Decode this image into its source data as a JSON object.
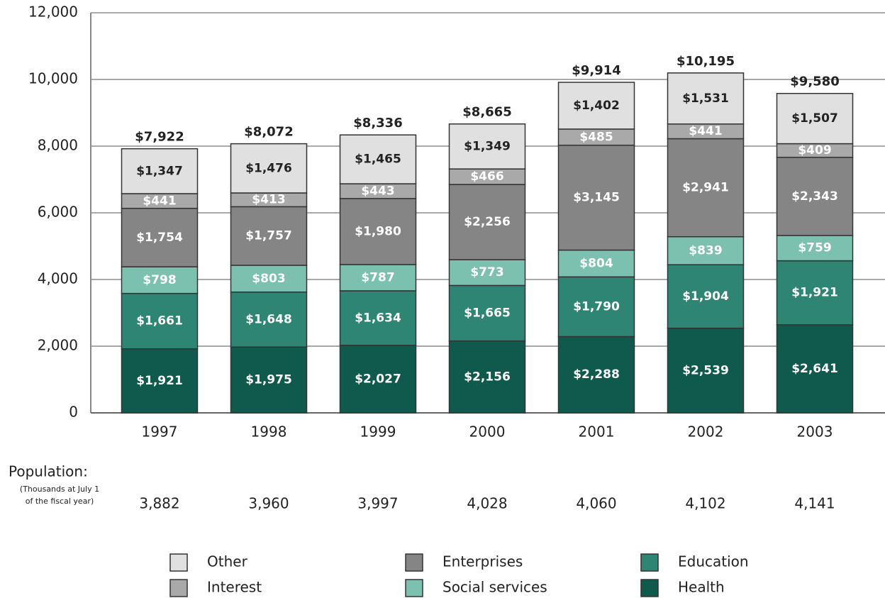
{
  "chart_data": {
    "type": "stacked_bar",
    "categories": [
      "1997",
      "1998",
      "1999",
      "2000",
      "2001",
      "2002",
      "2003"
    ],
    "series": [
      {
        "name": "Health",
        "color": "#0f5a4c",
        "label_color": "#ffffff",
        "values": [
          1921,
          1975,
          2027,
          2156,
          2288,
          2539,
          2641
        ],
        "value_labels": [
          "$1,921",
          "$1,975",
          "$2,027",
          "$2,156",
          "$2,288",
          "$2,539",
          "$2,641"
        ]
      },
      {
        "name": "Education",
        "color": "#2e8574",
        "label_color": "#ffffff",
        "values": [
          1661,
          1648,
          1634,
          1665,
          1790,
          1904,
          1921
        ],
        "value_labels": [
          "$1,661",
          "$1,648",
          "$1,634",
          "$1,665",
          "$1,790",
          "$1,904",
          "$1,921"
        ]
      },
      {
        "name": "Social services",
        "color": "#7cc0b0",
        "label_color": "#ffffff",
        "values": [
          798,
          803,
          787,
          773,
          804,
          839,
          759
        ],
        "value_labels": [
          "$798",
          "$803",
          "$787",
          "$773",
          "$804",
          "$839",
          "$759"
        ]
      },
      {
        "name": "Enterprises",
        "color": "#858585",
        "label_color": "#ffffff",
        "values": [
          1754,
          1757,
          1980,
          2256,
          3145,
          2941,
          2343
        ],
        "value_labels": [
          "$1,754",
          "$1,757",
          "$1,980",
          "$2,256",
          "$3,145",
          "$2,941",
          "$2,343"
        ]
      },
      {
        "name": "Interest",
        "color": "#a9a9a9",
        "label_color": "#ffffff",
        "values": [
          441,
          413,
          443,
          466,
          485,
          441,
          409
        ],
        "value_labels": [
          "$441",
          "$413",
          "$443",
          "$466",
          "$485",
          "$441",
          "$409"
        ]
      },
      {
        "name": "Other",
        "color": "#e0e0e0",
        "label_color": "#222222",
        "values": [
          1347,
          1476,
          1465,
          1349,
          1402,
          1531,
          1507
        ],
        "value_labels": [
          "$1,347",
          "$1,476",
          "$1,465",
          "$1,349",
          "$1,402",
          "$1,531",
          "$1,507"
        ]
      }
    ],
    "totals": [
      7922,
      8072,
      8336,
      8665,
      9914,
      10195,
      9580
    ],
    "total_labels": [
      "$7,922",
      "$8,072",
      "$8,336",
      "$8,665",
      "$9,914",
      "$10,195",
      "$9,580"
    ],
    "ylim": [
      0,
      12000
    ],
    "yticks": [
      0,
      {
        "value": 2000,
        "label": "2,000"
      },
      {
        "value": 4000,
        "label": "4,000"
      },
      {
        "value": 6000,
        "label": "6,000"
      },
      {
        "value": 8000,
        "label": "8,000"
      },
      {
        "value": 10000,
        "label": "10,000"
      },
      {
        "value": 12000,
        "label": "12,000"
      }
    ],
    "grid": true,
    "population": {
      "label": "Population:",
      "note": [
        "(Thousands at July 1",
        "of the fiscal year)"
      ],
      "values": [
        3882,
        3960,
        3997,
        4028,
        4060,
        4102,
        4141
      ],
      "value_labels": [
        "3,882",
        "3,960",
        "3,997",
        "4,028",
        "4,060",
        "4,102",
        "4,141"
      ]
    }
  }
}
